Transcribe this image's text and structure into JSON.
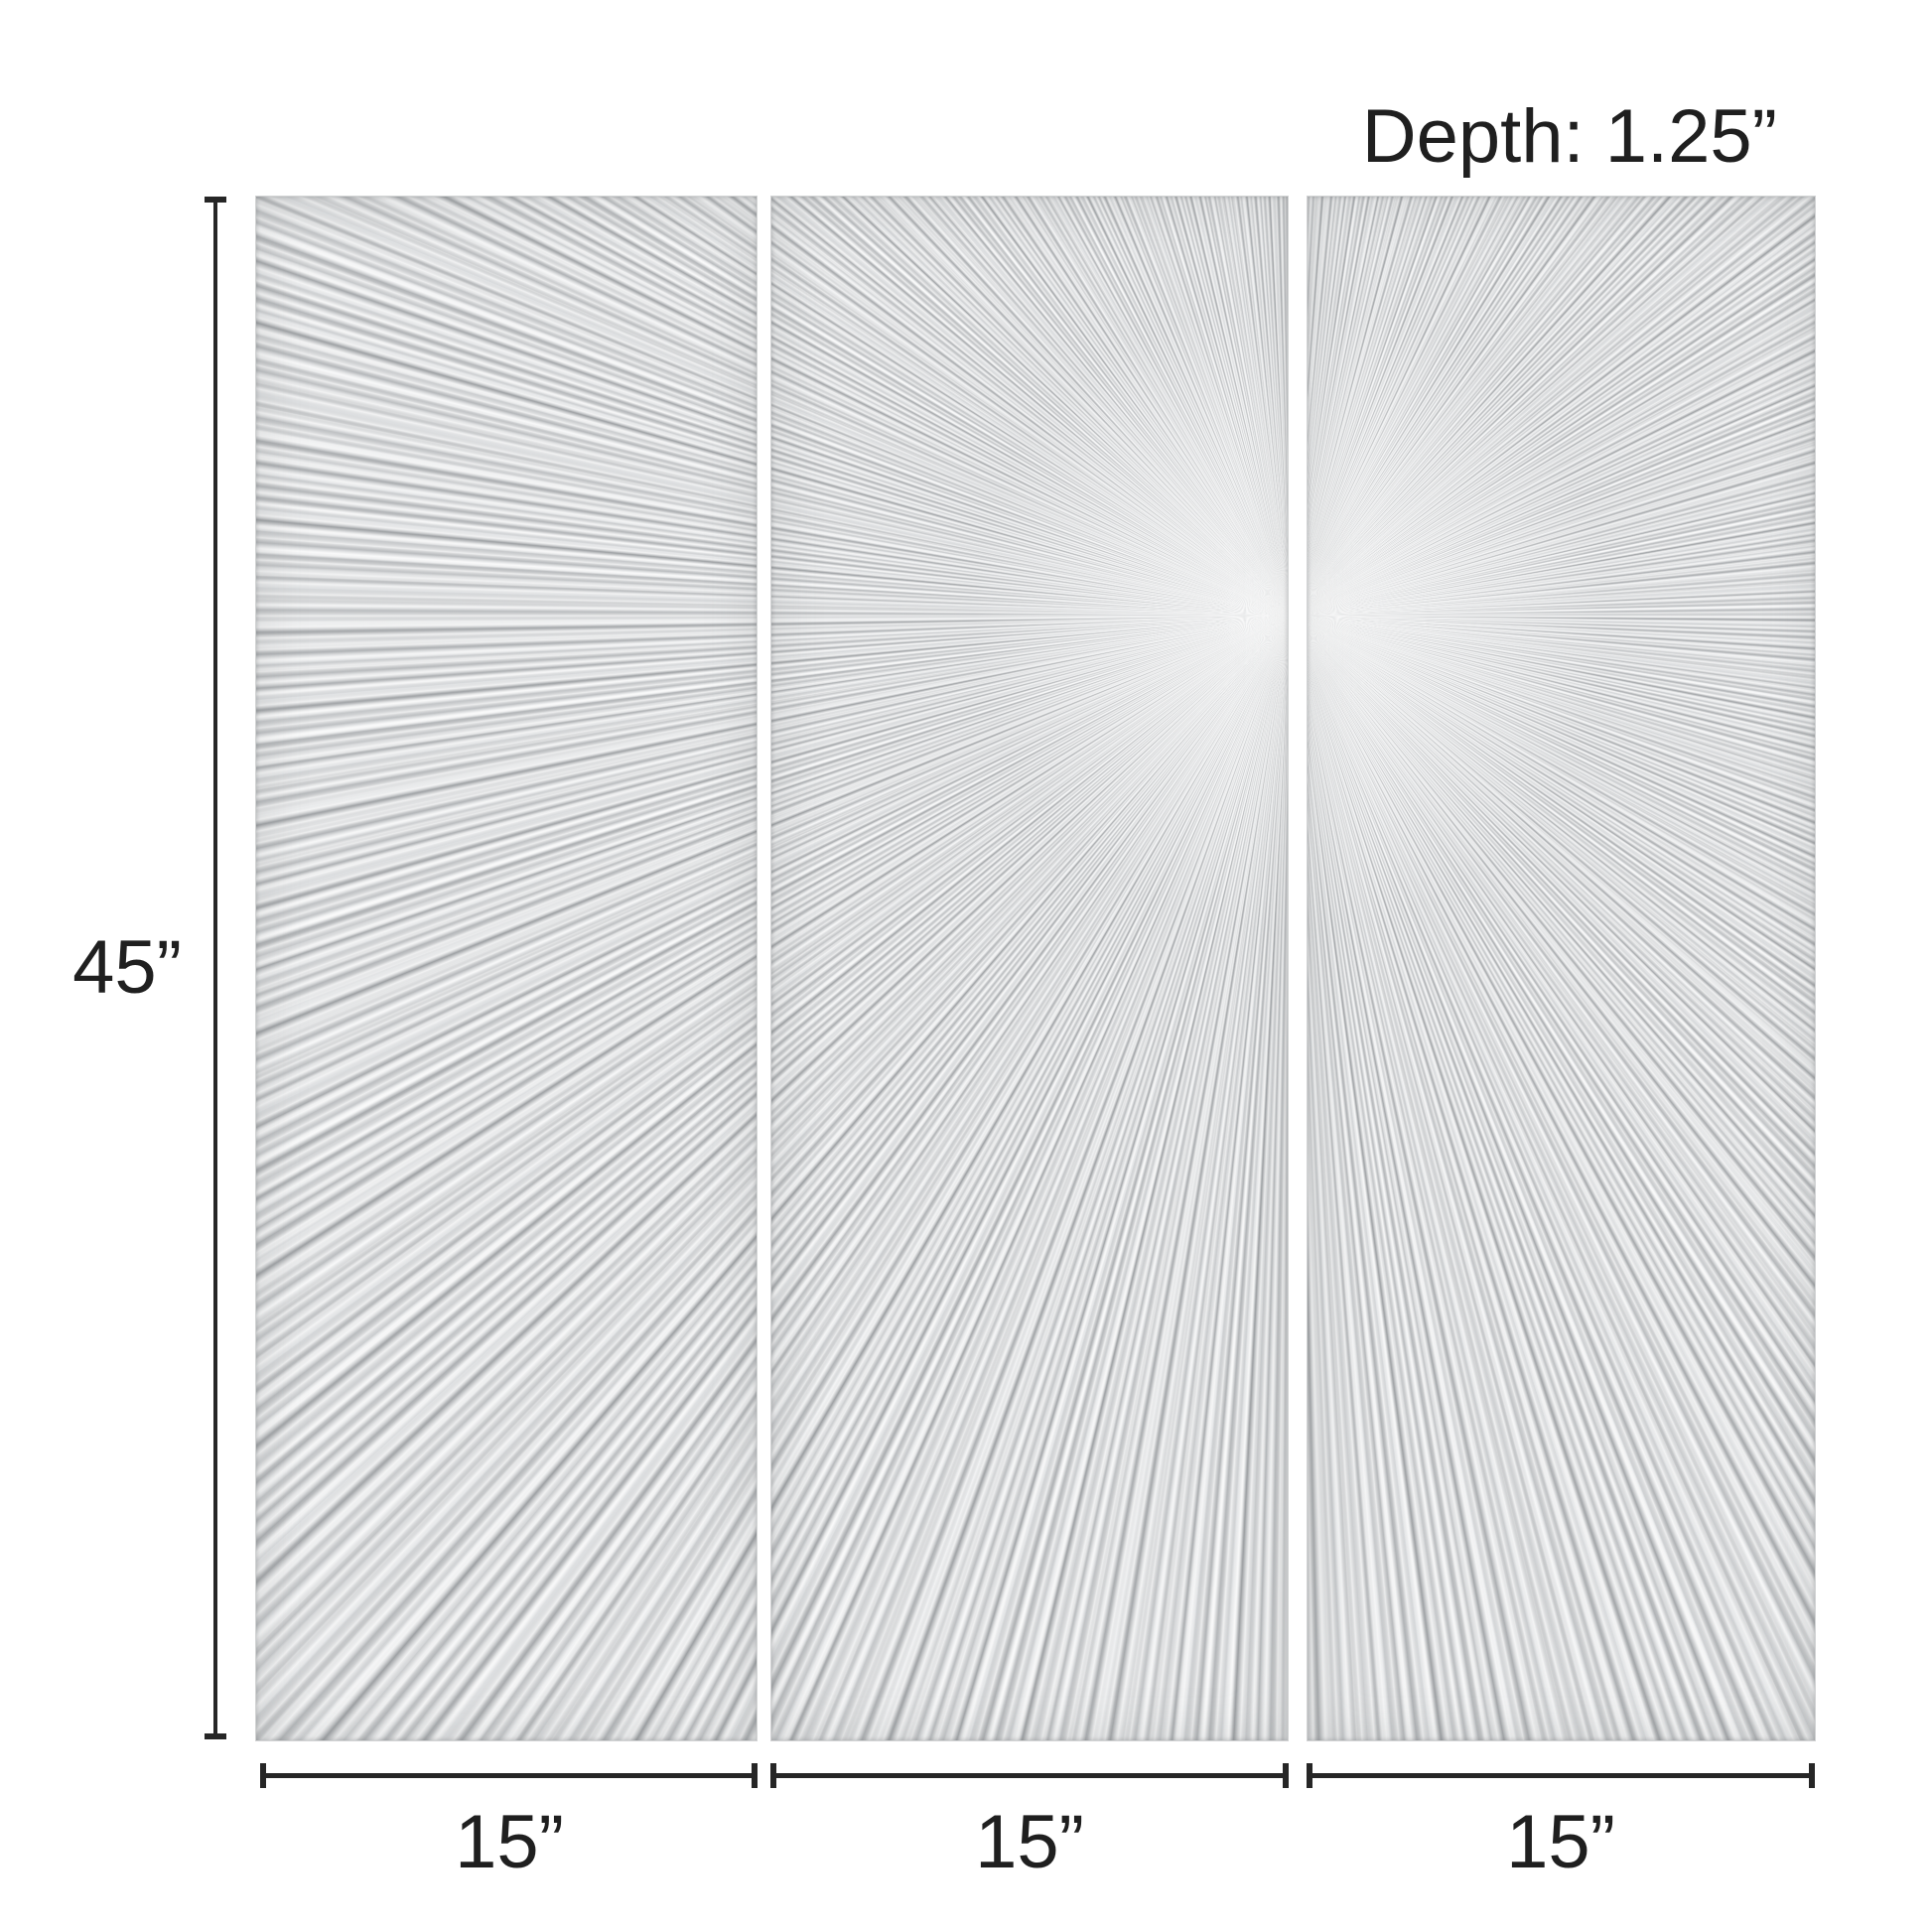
{
  "product_diagram": {
    "depth_label": "Depth: 1.25”",
    "height_label": "45”",
    "width_labels": [
      "15”",
      "15”",
      "15”"
    ],
    "panel_count": 3,
    "colors": {
      "background": "#ffffff",
      "dimension_lines": "#262626",
      "label_text": "#1f1f1f",
      "silver_base": "#c2c4c6",
      "silver_light": "#eceded",
      "silver_dark": "#9da0a3"
    }
  }
}
